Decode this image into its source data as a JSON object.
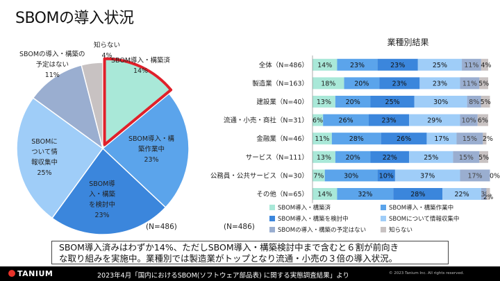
{
  "title": "SBOMの導入状況",
  "chart_data": [
    {
      "type": "pie",
      "title": "",
      "n_label": "(N=486)",
      "slices": [
        {
          "label": "SBOM導入・構築済",
          "value": 14,
          "color": "#a9e8d8",
          "highlight": true
        },
        {
          "label": "SBOM導入・構築作業中",
          "value": 23,
          "color": "#5ba4eb"
        },
        {
          "label": "SBOM導入・構築を検討中",
          "value": 23,
          "color": "#3b86dc"
        },
        {
          "label": "SBOMについて情報収集中",
          "value": 25,
          "color": "#9fcdf8"
        },
        {
          "label": "SBOMの導入・構築の予定はない",
          "value": 11,
          "color": "#9aaed0"
        },
        {
          "label": "知らない",
          "value": 4,
          "color": "#c8c2c2"
        }
      ],
      "display_labels": [
        {
          "text": "SBOM導入・構築済",
          "pct": "14%"
        },
        {
          "text": "SBOM導入・構築作業中",
          "pct": "23%"
        },
        {
          "text": "SBOM導入・構築を検討中",
          "pct": "23%"
        },
        {
          "text": "SBOMについて情報収集中",
          "pct": "25%"
        },
        {
          "text": "SBOMの導入・構築の予定はない",
          "pct": "11%"
        },
        {
          "text": "知らない",
          "pct": "4%"
        }
      ]
    },
    {
      "type": "bar",
      "stacked": true,
      "orientation": "horizontal",
      "title": "業種別結果",
      "n_label": "(N=486)",
      "xlim": [
        0,
        100
      ],
      "outside_label": "2%",
      "categories": [
        "全体（N=486）",
        "製造業（N=163）",
        "建設業（N=40）",
        "流通・小売・商社（N=31）",
        "金融業（N=46）",
        "サービス（N=111）",
        "公務員・公共サービス（N=30）",
        "その他（N=65）"
      ],
      "series": [
        {
          "name": "SBOM導入・構築済",
          "color": "#a9e8d8",
          "values": [
            14,
            18,
            13,
            6,
            11,
            13,
            7,
            14
          ],
          "labels": [
            "14%",
            "18%",
            "13%",
            "6%",
            "11%",
            "13%",
            "7%",
            "14%"
          ]
        },
        {
          "name": "SBOM導入・構築作業中",
          "color": "#5ba4eb",
          "values": [
            23,
            20,
            20,
            26,
            28,
            20,
            30,
            32
          ],
          "labels": [
            "23%",
            "20%",
            "20%",
            "26%",
            "28%",
            "20%",
            "30%",
            "32%"
          ]
        },
        {
          "name": "SBOM導入・構築を検討中",
          "color": "#3b86dc",
          "values": [
            23,
            23,
            25,
            23,
            26,
            22,
            10,
            28
          ],
          "labels": [
            "23%",
            "23%",
            "25%",
            "23%",
            "26%",
            "22%",
            "10%",
            "28%"
          ]
        },
        {
          "name": "SBOMについて情報収集中",
          "color": "#9fcdf8",
          "values": [
            25,
            23,
            30,
            29,
            17,
            25,
            37,
            22
          ],
          "labels": [
            "25%",
            "23%",
            "30%",
            "29%",
            "17%",
            "25%",
            "37%",
            "22%"
          ]
        },
        {
          "name": "SBOMの導入・構築の予定はない",
          "color": "#9aaed0",
          "values": [
            11,
            11,
            8,
            10,
            15,
            15,
            17,
            3
          ],
          "labels": [
            "11%",
            "11%",
            "8%",
            "10%",
            "15%",
            "15%",
            "17%",
            "3%"
          ]
        },
        {
          "name": "知らない",
          "color": "#c8c2c2",
          "values": [
            4,
            5,
            5,
            6,
            2,
            5,
            0,
            2
          ],
          "labels": [
            "4%",
            "5%",
            "5%",
            "6%",
            "2%",
            "5%",
            "0%",
            ""
          ]
        }
      ]
    }
  ],
  "summary_lines": [
    "SBOM導入済みはわずか14%、ただしSBOM導入・構築検討中まで含むと６割が前向き",
    "な取り組みを実施中。業種別では製造業がトップとなり流通・小売の３倍の導入状況。"
  ],
  "footer": {
    "logo": "TANIUM",
    "source": "2023年4月「国内におけるSBOM(ソフトウェア部品表) に関する実態調査結果」より",
    "copyright": "© 2023 Tanium Inc. All rights reserved."
  }
}
